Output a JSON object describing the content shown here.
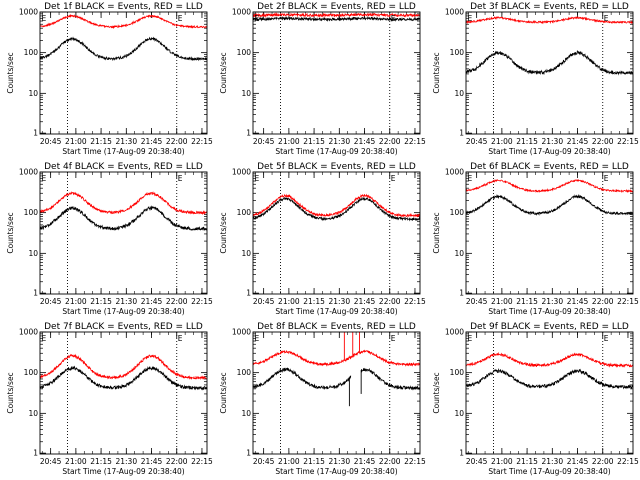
{
  "chart_data": [
    {
      "type": "line",
      "title": "Det 1f BLACK = Events, RED = LLD",
      "xlabel": "Start Time (17-Aug-09 20:38:40)",
      "ylabel": "Counts/sec",
      "ylog": true,
      "ylim": [
        1,
        1000
      ],
      "xlim": [
        "20:38:40",
        "22:18"
      ],
      "xticks": [
        "20:45",
        "21:00",
        "21:15",
        "21:30",
        "21:45",
        "22:00",
        "22:15"
      ],
      "yticks": [
        "1",
        "10",
        "100",
        "1000"
      ],
      "markers": [
        {
          "label": "E",
          "at": "20:39"
        },
        {
          "label": "E",
          "at": "22:00"
        }
      ],
      "dotted_lines": [
        "20:55",
        "22:00"
      ],
      "series": [
        {
          "color": "#000000",
          "base": 70,
          "peak": 220,
          "peaks": [
            "20:58",
            "21:45"
          ],
          "width_min": 11,
          "noise": 0.03
        },
        {
          "color": "#ff0000",
          "base": 430,
          "peak": 800,
          "peaks": [
            "20:58",
            "21:45"
          ],
          "width_min": 11,
          "noise": 0.02
        }
      ]
    },
    {
      "type": "line",
      "title": "Det 2f BLACK = Events, RED = LLD",
      "xlabel": "Start Time (17-Aug-09 20:38:40)",
      "ylabel": "Counts/sec",
      "ylog": true,
      "ylim": [
        1,
        1000
      ],
      "xlim": [
        "20:38:40",
        "22:18"
      ],
      "xticks": [
        "20:45",
        "21:00",
        "21:15",
        "21:30",
        "21:45",
        "22:00",
        "22:15"
      ],
      "yticks": [
        "1",
        "10",
        "100",
        "1000"
      ],
      "markers": [
        {
          "label": "E",
          "at": "20:39"
        },
        {
          "label": "E",
          "at": "22:00"
        }
      ],
      "dotted_lines": [
        "20:55",
        "22:00"
      ],
      "series": [
        {
          "color": "#000000",
          "base": 660,
          "peak": 700,
          "peaks": [
            "20:58",
            "21:45"
          ],
          "width_min": 11,
          "noise": 0.03
        },
        {
          "color": "#ff0000",
          "base": 830,
          "peak": 860,
          "peaks": [
            "20:58",
            "21:45"
          ],
          "width_min": 11,
          "noise": 0.03
        }
      ]
    },
    {
      "type": "line",
      "title": "Det 3f BLACK = Events, RED = LLD",
      "xlabel": "Start Time (17-Aug-09 20:38:40)",
      "ylabel": "Counts/sec",
      "ylog": true,
      "ylim": [
        1,
        1000
      ],
      "xlim": [
        "20:38:40",
        "22:18"
      ],
      "xticks": [
        "20:45",
        "21:00",
        "21:15",
        "21:30",
        "21:45",
        "22:00",
        "22:15"
      ],
      "yticks": [
        "1",
        "10",
        "100",
        "1000"
      ],
      "markers": [
        {
          "label": "E",
          "at": "20:39"
        },
        {
          "label": "E",
          "at": "22:00"
        }
      ],
      "dotted_lines": [
        "20:55",
        "22:00"
      ],
      "series": [
        {
          "color": "#000000",
          "base": 32,
          "peak": 100,
          "peaks": [
            "20:58",
            "21:45"
          ],
          "width_min": 11,
          "noise": 0.04
        },
        {
          "color": "#ff0000",
          "base": 560,
          "peak": 720,
          "peaks": [
            "20:58",
            "21:45"
          ],
          "width_min": 11,
          "noise": 0.02
        }
      ]
    },
    {
      "type": "line",
      "title": "Det 4f BLACK = Events, RED = LLD",
      "xlabel": "Start Time (17-Aug-09 20:38:40)",
      "ylabel": "Counts/sec",
      "ylog": true,
      "ylim": [
        1,
        1000
      ],
      "xlim": [
        "20:38:40",
        "22:18"
      ],
      "xticks": [
        "20:45",
        "21:00",
        "21:15",
        "21:30",
        "21:45",
        "22:00",
        "22:15"
      ],
      "yticks": [
        "1",
        "10",
        "100",
        "1000"
      ],
      "markers": [
        {
          "label": "E",
          "at": "20:39"
        },
        {
          "label": "E",
          "at": "22:00"
        }
      ],
      "dotted_lines": [
        "20:55",
        "22:00"
      ],
      "series": [
        {
          "color": "#000000",
          "base": 40,
          "peak": 130,
          "peaks": [
            "20:58",
            "21:45"
          ],
          "width_min": 11,
          "noise": 0.04
        },
        {
          "color": "#ff0000",
          "base": 100,
          "peak": 300,
          "peaks": [
            "20:58",
            "21:45"
          ],
          "width_min": 11,
          "noise": 0.03
        }
      ]
    },
    {
      "type": "line",
      "title": "Det 5f BLACK = Events, RED = LLD",
      "xlabel": "Start Time (17-Aug-09 20:38:40)",
      "ylabel": "Counts/sec",
      "ylog": true,
      "ylim": [
        1,
        1000
      ],
      "xlim": [
        "20:38:40",
        "22:18"
      ],
      "xticks": [
        "20:45",
        "21:00",
        "21:15",
        "21:30",
        "21:45",
        "22:00",
        "22:15"
      ],
      "yticks": [
        "1",
        "10",
        "100",
        "1000"
      ],
      "markers": [
        {
          "label": "E",
          "at": "20:39"
        },
        {
          "label": "E",
          "at": "22:00"
        }
      ],
      "dotted_lines": [
        "20:55",
        "22:00"
      ],
      "series": [
        {
          "color": "#000000",
          "base": 70,
          "peak": 220,
          "peaks": [
            "20:58",
            "21:45"
          ],
          "width_min": 11,
          "noise": 0.03
        },
        {
          "color": "#ff0000",
          "base": 85,
          "peak": 260,
          "peaks": [
            "20:58",
            "21:45"
          ],
          "width_min": 11,
          "noise": 0.03
        }
      ]
    },
    {
      "type": "line",
      "title": "Det 6f BLACK = Events, RED = LLD",
      "xlabel": "Start Time (17-Aug-09 20:38:40)",
      "ylabel": "Counts/sec",
      "ylog": true,
      "ylim": [
        1,
        1000
      ],
      "xlim": [
        "20:38:40",
        "22:18"
      ],
      "xticks": [
        "20:45",
        "21:00",
        "21:15",
        "21:30",
        "21:45",
        "22:00",
        "22:15"
      ],
      "yticks": [
        "1",
        "10",
        "100",
        "1000"
      ],
      "markers": [
        {
          "label": "E",
          "at": "20:39"
        },
        {
          "label": "E",
          "at": "22:00"
        }
      ],
      "dotted_lines": [
        "20:55",
        "22:00"
      ],
      "series": [
        {
          "color": "#000000",
          "base": 95,
          "peak": 250,
          "peaks": [
            "20:58",
            "21:45"
          ],
          "width_min": 11,
          "noise": 0.03
        },
        {
          "color": "#ff0000",
          "base": 340,
          "peak": 620,
          "peaks": [
            "20:58",
            "21:45"
          ],
          "width_min": 11,
          "noise": 0.02
        }
      ]
    },
    {
      "type": "line",
      "title": "Det 7f BLACK = Events, RED = LLD",
      "xlabel": "Start Time (17-Aug-09 20:38:40)",
      "ylabel": "Counts/sec",
      "ylog": true,
      "ylim": [
        1,
        1000
      ],
      "xlim": [
        "20:38:40",
        "22:18"
      ],
      "xticks": [
        "20:45",
        "21:00",
        "21:15",
        "21:30",
        "21:45",
        "22:00",
        "22:15"
      ],
      "yticks": [
        "1",
        "10",
        "100",
        "1000"
      ],
      "markers": [
        {
          "label": "E",
          "at": "20:39"
        },
        {
          "label": "E",
          "at": "22:00"
        }
      ],
      "dotted_lines": [
        "20:55",
        "22:00"
      ],
      "series": [
        {
          "color": "#000000",
          "base": 42,
          "peak": 130,
          "peaks": [
            "20:58",
            "21:45"
          ],
          "width_min": 11,
          "noise": 0.04
        },
        {
          "color": "#ff0000",
          "base": 75,
          "peak": 260,
          "peaks": [
            "20:58",
            "21:45"
          ],
          "width_min": 11,
          "noise": 0.03
        }
      ]
    },
    {
      "type": "line",
      "title": "Det 8f BLACK = Events, RED = LLD",
      "xlabel": "Start Time (17-Aug-09 20:38:40)",
      "ylabel": "Counts/sec",
      "ylog": true,
      "ylim": [
        1,
        1000
      ],
      "xlim": [
        "20:38:40",
        "22:18"
      ],
      "xticks": [
        "20:45",
        "21:00",
        "21:15",
        "21:30",
        "21:45",
        "22:00",
        "22:15"
      ],
      "yticks": [
        "1",
        "10",
        "100",
        "1000"
      ],
      "markers": [
        {
          "label": "E",
          "at": "20:39"
        },
        {
          "label": "E",
          "at": "22:00"
        }
      ],
      "dotted_lines": [
        "20:55",
        "22:00"
      ],
      "series": [
        {
          "color": "#000000",
          "base": 42,
          "peak": 120,
          "peaks": [
            "20:58",
            "21:45"
          ],
          "width_min": 11,
          "noise": 0.04,
          "gaps": [
            [
              "21:37",
              "21:43"
            ]
          ],
          "spikes": [
            {
              "at": "21:36",
              "value": 15
            },
            {
              "at": "21:43",
              "value": 30
            }
          ]
        },
        {
          "color": "#ff0000",
          "base": 160,
          "peak": 330,
          "peaks": [
            "20:58",
            "21:45"
          ],
          "width_min": 11,
          "noise": 0.03,
          "spikes": [
            {
              "at": "21:33",
              "value": 1000
            },
            {
              "at": "21:38",
              "value": 1000
            },
            {
              "at": "21:42",
              "value": 1000
            }
          ]
        }
      ]
    },
    {
      "type": "line",
      "title": "Det 9f BLACK = Events, RED = LLD",
      "xlabel": "Start Time (17-Aug-09 20:38:40)",
      "ylabel": "Counts/sec",
      "ylog": true,
      "ylim": [
        1,
        1000
      ],
      "xlim": [
        "20:38:40",
        "22:18"
      ],
      "xticks": [
        "20:45",
        "21:00",
        "21:15",
        "21:30",
        "21:45",
        "22:00",
        "22:15"
      ],
      "yticks": [
        "1",
        "10",
        "100",
        "1000"
      ],
      "markers": [
        {
          "label": "E",
          "at": "20:39"
        },
        {
          "label": "E",
          "at": "22:00"
        }
      ],
      "dotted_lines": [
        "20:55",
        "22:00"
      ],
      "series": [
        {
          "color": "#000000",
          "base": 45,
          "peak": 110,
          "peaks": [
            "20:58",
            "21:45"
          ],
          "width_min": 11,
          "noise": 0.04
        },
        {
          "color": "#ff0000",
          "base": 150,
          "peak": 280,
          "peaks": [
            "20:58",
            "21:45"
          ],
          "width_min": 11,
          "noise": 0.03
        }
      ]
    }
  ]
}
